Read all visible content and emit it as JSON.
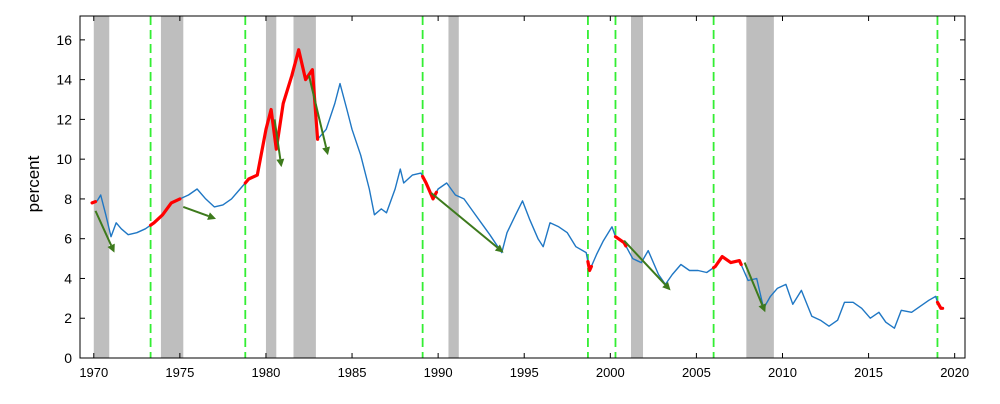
{
  "chart_data": {
    "type": "line",
    "title": "",
    "xlabel": "",
    "ylabel": "percent",
    "xlim": [
      1969.2,
      2020.6
    ],
    "ylim": [
      0,
      17.2
    ],
    "x_ticks": [
      1970,
      1975,
      1980,
      1985,
      1990,
      1995,
      2000,
      2005,
      2010,
      2015,
      2020
    ],
    "y_ticks": [
      0,
      2,
      4,
      6,
      8,
      10,
      12,
      14,
      16
    ],
    "grid": false,
    "legend": "none",
    "colors": {
      "line": "#1f77c4",
      "highlight": "#ff0000",
      "recession_band": "#bebebe",
      "vertical_marker": "#33ee33",
      "arrow": "#3d7a1c"
    },
    "recession_bands": [
      [
        1970.0,
        1970.9
      ],
      [
        1973.9,
        1975.2
      ],
      [
        1980.0,
        1980.6
      ],
      [
        1981.6,
        1982.9
      ],
      [
        1990.6,
        1991.2
      ],
      [
        2001.2,
        2001.9
      ],
      [
        2007.9,
        2009.5
      ]
    ],
    "vertical_markers": [
      1973.3,
      1978.8,
      1989.1,
      1998.7,
      2000.3,
      2006.0,
      2019.0
    ],
    "series": [
      {
        "points": [
          [
            1969.9,
            7.8
          ],
          [
            1970.2,
            7.9
          ],
          [
            1970.4,
            8.2
          ],
          [
            1970.7,
            7.2
          ],
          [
            1971.0,
            6.1
          ],
          [
            1971.3,
            6.8
          ],
          [
            1971.6,
            6.5
          ],
          [
            1972.0,
            6.2
          ],
          [
            1972.5,
            6.3
          ],
          [
            1973.0,
            6.5
          ],
          [
            1973.5,
            6.8
          ],
          [
            1974.0,
            7.2
          ],
          [
            1974.5,
            7.8
          ],
          [
            1975.0,
            8.0
          ],
          [
            1975.5,
            8.2
          ],
          [
            1976.0,
            8.5
          ],
          [
            1976.5,
            8.0
          ],
          [
            1977.0,
            7.6
          ],
          [
            1977.5,
            7.7
          ],
          [
            1978.0,
            8.0
          ],
          [
            1978.5,
            8.5
          ],
          [
            1979.0,
            9.0
          ],
          [
            1979.5,
            9.2
          ],
          [
            1980.0,
            11.5
          ],
          [
            1980.3,
            12.5
          ],
          [
            1980.6,
            10.5
          ],
          [
            1981.0,
            12.8
          ],
          [
            1981.5,
            14.2
          ],
          [
            1981.9,
            15.5
          ],
          [
            1982.3,
            14.0
          ],
          [
            1982.7,
            14.5
          ],
          [
            1983.0,
            11.0
          ],
          [
            1983.5,
            11.5
          ],
          [
            1984.0,
            12.8
          ],
          [
            1984.3,
            13.8
          ],
          [
            1984.7,
            12.5
          ],
          [
            1985.0,
            11.5
          ],
          [
            1985.5,
            10.2
          ],
          [
            1986.0,
            8.5
          ],
          [
            1986.3,
            7.2
          ],
          [
            1986.7,
            7.5
          ],
          [
            1987.0,
            7.3
          ],
          [
            1987.5,
            8.5
          ],
          [
            1987.8,
            9.5
          ],
          [
            1988.0,
            8.8
          ],
          [
            1988.5,
            9.2
          ],
          [
            1989.0,
            9.3
          ],
          [
            1989.3,
            8.8
          ],
          [
            1989.7,
            8.0
          ],
          [
            1990.0,
            8.5
          ],
          [
            1990.5,
            8.8
          ],
          [
            1991.0,
            8.2
          ],
          [
            1991.5,
            8.0
          ],
          [
            1992.0,
            7.4
          ],
          [
            1992.5,
            6.8
          ],
          [
            1993.0,
            6.2
          ],
          [
            1993.7,
            5.3
          ],
          [
            1994.0,
            6.3
          ],
          [
            1994.5,
            7.2
          ],
          [
            1994.9,
            7.9
          ],
          [
            1995.3,
            7.0
          ],
          [
            1995.8,
            6.0
          ],
          [
            1996.1,
            5.6
          ],
          [
            1996.5,
            6.8
          ],
          [
            1997.0,
            6.6
          ],
          [
            1997.5,
            6.3
          ],
          [
            1998.0,
            5.6
          ],
          [
            1998.6,
            5.3
          ],
          [
            1998.8,
            4.4
          ],
          [
            1999.2,
            5.2
          ],
          [
            1999.6,
            5.9
          ],
          [
            2000.1,
            6.6
          ],
          [
            2000.3,
            6.1
          ],
          [
            2000.8,
            5.8
          ],
          [
            2001.3,
            5.0
          ],
          [
            2001.8,
            4.8
          ],
          [
            2002.2,
            5.4
          ],
          [
            2002.8,
            4.2
          ],
          [
            2003.2,
            3.7
          ],
          [
            2003.6,
            4.2
          ],
          [
            2004.1,
            4.7
          ],
          [
            2004.6,
            4.4
          ],
          [
            2005.1,
            4.4
          ],
          [
            2005.6,
            4.3
          ],
          [
            2006.1,
            4.6
          ],
          [
            2006.5,
            5.1
          ],
          [
            2007.0,
            4.8
          ],
          [
            2007.5,
            4.9
          ],
          [
            2008.0,
            3.9
          ],
          [
            2008.5,
            4.0
          ],
          [
            2008.9,
            2.5
          ],
          [
            2009.3,
            3.1
          ],
          [
            2009.7,
            3.5
          ],
          [
            2010.2,
            3.7
          ],
          [
            2010.6,
            2.7
          ],
          [
            2011.1,
            3.4
          ],
          [
            2011.7,
            2.1
          ],
          [
            2012.2,
            1.9
          ],
          [
            2012.7,
            1.6
          ],
          [
            2013.2,
            1.9
          ],
          [
            2013.6,
            2.8
          ],
          [
            2014.1,
            2.8
          ],
          [
            2014.6,
            2.5
          ],
          [
            2015.1,
            2.0
          ],
          [
            2015.6,
            2.3
          ],
          [
            2016.0,
            1.8
          ],
          [
            2016.5,
            1.5
          ],
          [
            2016.9,
            2.4
          ],
          [
            2017.5,
            2.3
          ],
          [
            2018.0,
            2.6
          ],
          [
            2018.5,
            2.9
          ],
          [
            2018.9,
            3.1
          ],
          [
            2019.0,
            2.8
          ],
          [
            2019.2,
            2.5
          ]
        ]
      }
    ],
    "highlight_ranges": [
      [
        1969.9,
        1970.1
      ],
      [
        1973.3,
        1975.0
      ],
      [
        1978.8,
        1983.0
      ],
      [
        1989.1,
        1989.9
      ],
      [
        1998.7,
        1998.9
      ],
      [
        2000.3,
        2000.9
      ],
      [
        2006.0,
        2007.6
      ],
      [
        2019.0,
        2019.3
      ]
    ],
    "arrows": [
      [
        1970.1,
        7.4,
        1971.2,
        5.3
      ],
      [
        1975.2,
        7.6,
        1977.1,
        7.0
      ],
      [
        1980.5,
        12.0,
        1980.9,
        9.6
      ],
      [
        1982.5,
        14.2,
        1983.6,
        10.2
      ],
      [
        1989.6,
        8.3,
        1993.8,
        5.3
      ],
      [
        2000.8,
        5.9,
        2003.5,
        3.4
      ],
      [
        2007.8,
        4.8,
        2009.0,
        2.3
      ]
    ]
  }
}
